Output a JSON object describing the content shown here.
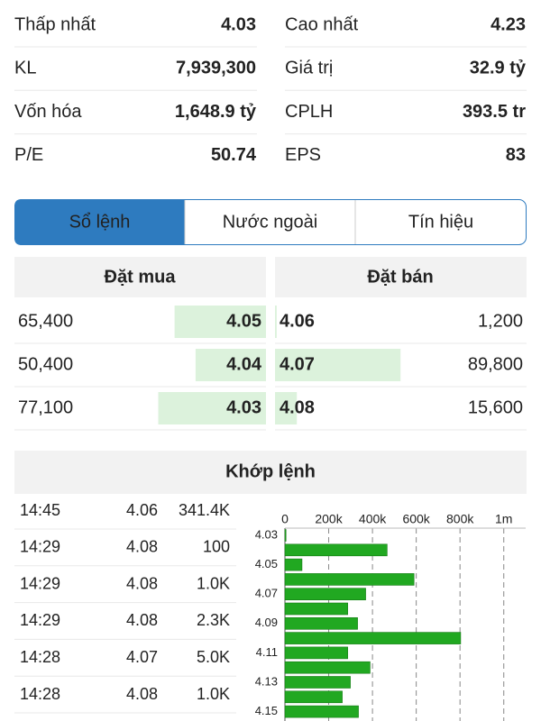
{
  "stats": [
    [
      {
        "label": "Thấp nhất",
        "value": "4.03",
        "color": "#1fa31f"
      },
      {
        "label": "Cao nhất",
        "value": "4.23",
        "color": "#d21fd2"
      }
    ],
    [
      {
        "label": "KL",
        "value": "7,939,300"
      },
      {
        "label": "Giá trị",
        "value": "32.9 tỷ"
      }
    ],
    [
      {
        "label": "Vốn hóa",
        "value": "1,648.9 tỷ"
      },
      {
        "label": "CPLH",
        "value": "393.5 tr"
      }
    ],
    [
      {
        "label": "P/E",
        "value": "50.74"
      },
      {
        "label": "EPS",
        "value": "83"
      }
    ]
  ],
  "tabs": [
    "Sổ lệnh",
    "Nước ngoài",
    "Tín hiệu"
  ],
  "active_tab": 0,
  "order_book": {
    "bid_header": "Đặt mua",
    "ask_header": "Đặt bán",
    "bids": {
      "prices": [
        "4.05",
        "4.04",
        "4.03"
      ],
      "volumes": [
        65400,
        50400,
        77100
      ],
      "volume_labels": [
        "65,400",
        "50,400",
        "77,100"
      ]
    },
    "asks": {
      "prices": [
        "4.06",
        "4.07",
        "4.08"
      ],
      "volumes": [
        1200,
        89800,
        15600
      ],
      "volume_labels": [
        "1,200",
        "89,800",
        "15,600"
      ]
    }
  },
  "matches": {
    "title": "Khớp lệnh",
    "rows": [
      [
        "14:45",
        "4.06",
        "341.4K"
      ],
      [
        "14:29",
        "4.08",
        "100"
      ],
      [
        "14:29",
        "4.08",
        "1.0K"
      ],
      [
        "14:29",
        "4.08",
        "2.3K"
      ],
      [
        "14:28",
        "4.07",
        "5.0K"
      ],
      [
        "14:28",
        "4.08",
        "1.0K"
      ]
    ]
  },
  "chart_data": {
    "type": "bar",
    "orientation": "horizontal",
    "categories": [
      "4.03",
      null,
      "4.05",
      null,
      "4.07",
      null,
      "4.09",
      null,
      "4.11",
      null,
      "4.13",
      null,
      "4.15"
    ],
    "values": [
      5000,
      467000,
      78000,
      590000,
      369000,
      287000,
      332000,
      803000,
      287000,
      389000,
      299000,
      262000,
      336000
    ],
    "color": "#21a821",
    "xlim": [
      0,
      1100000
    ],
    "xticks": [
      0,
      {
        "value": 200000,
        "label": "200k"
      },
      {
        "value": 400000,
        "label": "400k"
      },
      {
        "value": 600000,
        "label": "600k"
      },
      {
        "value": 800000,
        "label": "800k"
      },
      {
        "value": 1000000,
        "label": "1m"
      }
    ],
    "grid": true
  }
}
